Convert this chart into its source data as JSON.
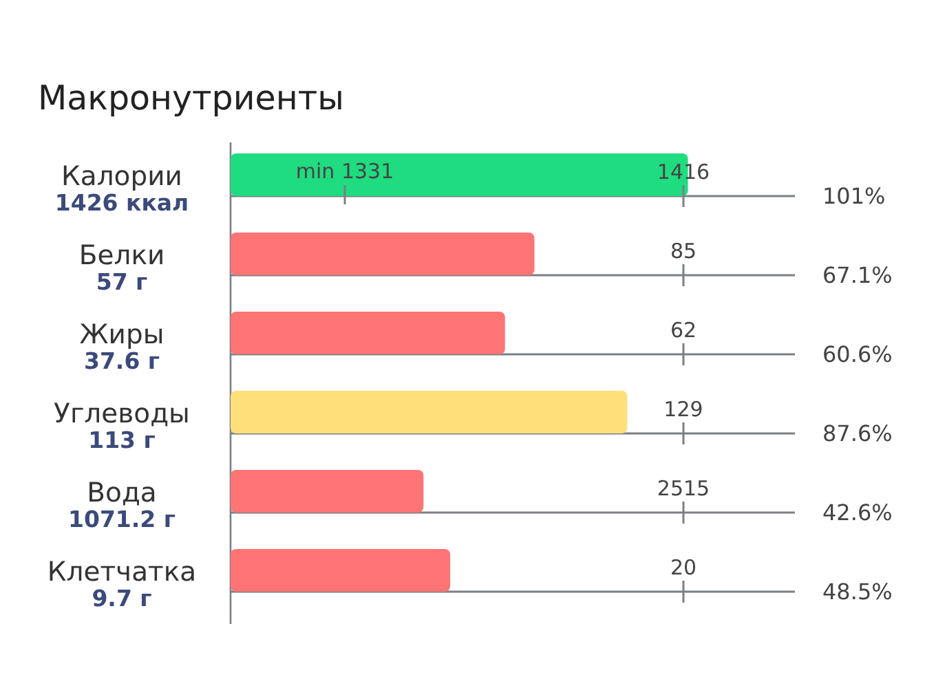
{
  "chart_data": {
    "type": "bar",
    "orientation": "horizontal",
    "title": "Макронутриенты",
    "categories": [
      "Калории\n1426 ккал",
      "Белки\n57 г",
      "Жиры\n37.6 г",
      "Углеводы\n113 г",
      "Вода\n1071.2 г",
      "Клетчатка\n9.7 г"
    ],
    "values": [
      101,
      67.1,
      60.6,
      87.6,
      42.6,
      48.5
    ],
    "colors": [
      "#20dc80",
      "#ff7474",
      "#ff7474",
      "#ffdf7a",
      "#ff7474",
      "#ff7474"
    ],
    "value_labels": [
      "101%",
      "67.1%",
      "60.6%",
      "87.6%",
      "42.6%",
      "48.5%"
    ],
    "annotations": [
      "min 1331",
      "1416",
      "85",
      "62",
      "129",
      "2515",
      "20"
    ],
    "grid": "y",
    "tick_labels": "y"
  }
}
